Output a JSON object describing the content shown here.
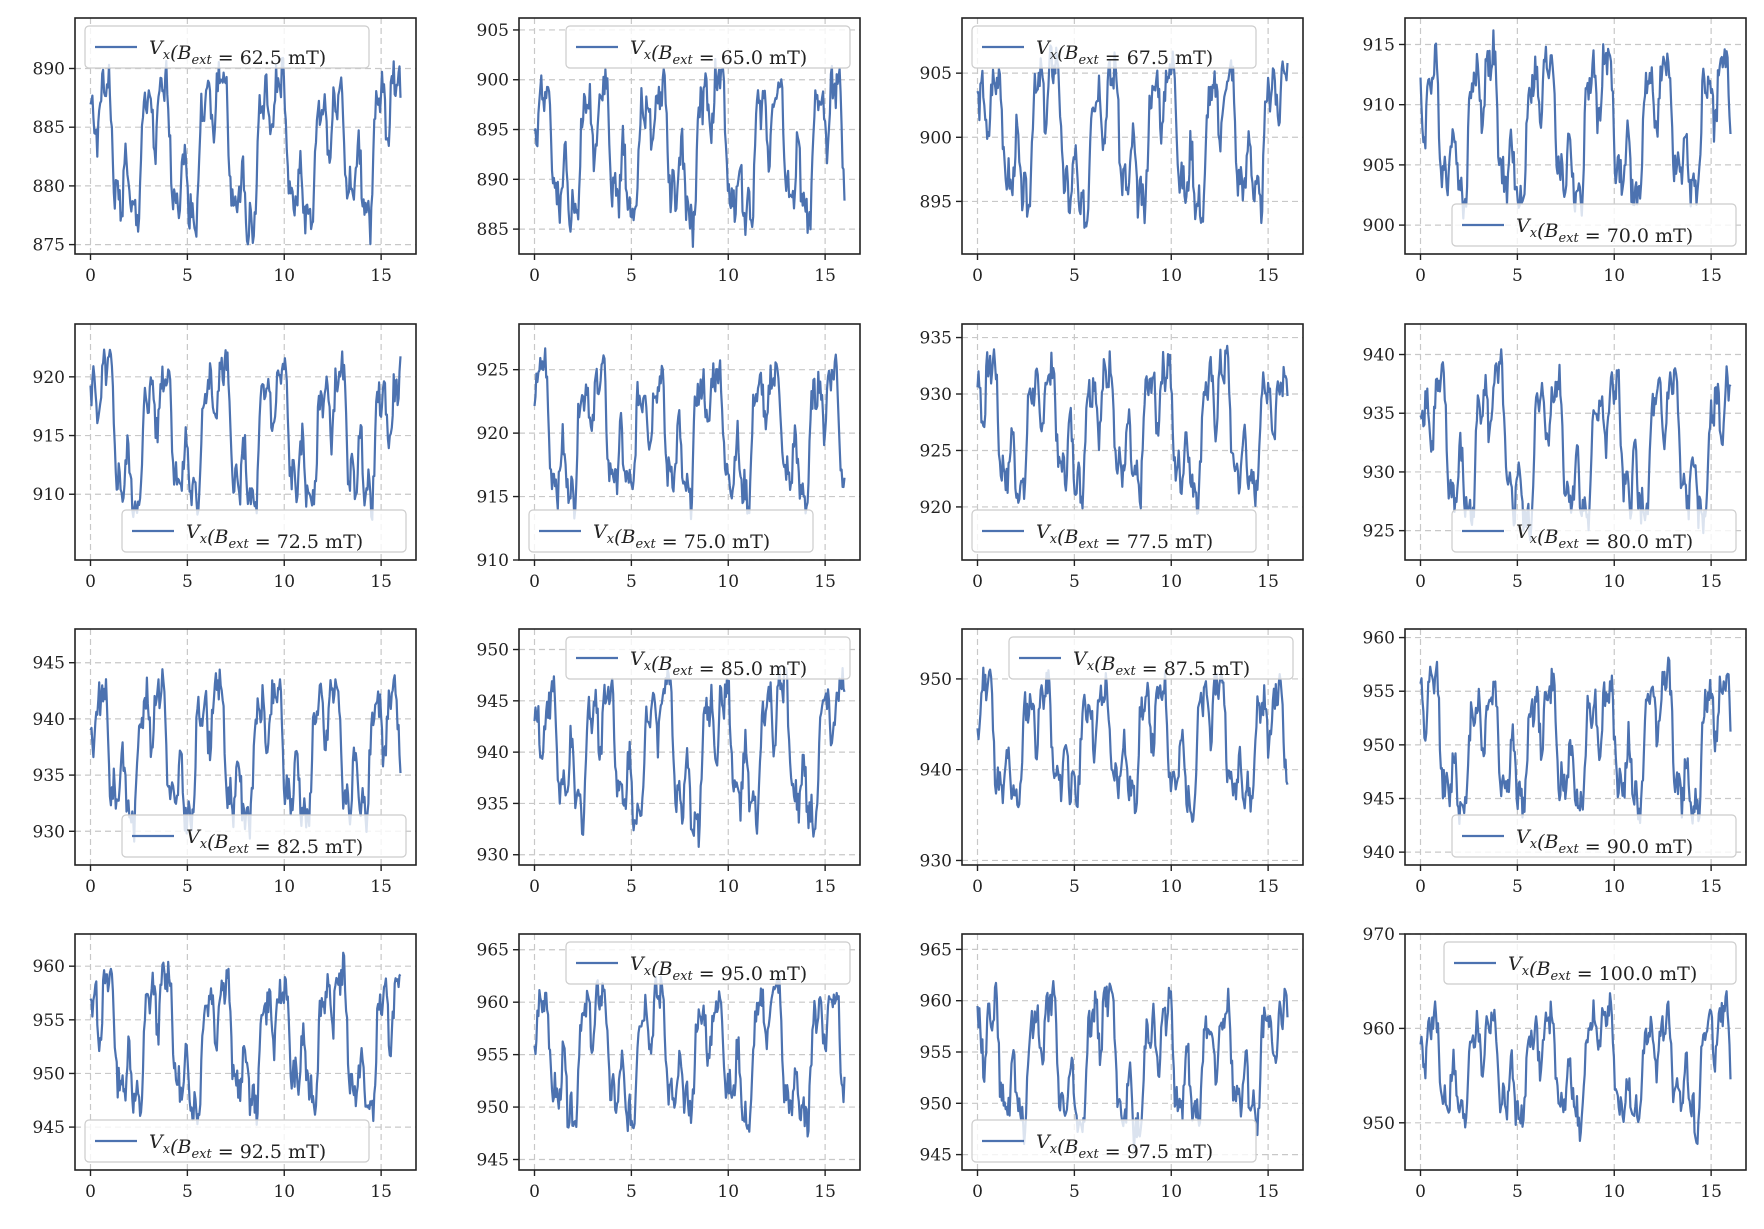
{
  "figure": {
    "line_color": "#4c72b0",
    "grid_color": "#c8c8c8",
    "frame_color": "#222222",
    "legend_prefix": "V",
    "legend_prefix_sub": "x",
    "legend_field": "(B",
    "legend_field_sub": "ext",
    "legend_unit": "mT)"
  },
  "chart_data": [
    {
      "type": "line",
      "legend": "62.5",
      "legend_loc": "top",
      "x_range": [
        0,
        16
      ],
      "xlim": [
        -0.8,
        16.8
      ],
      "xticks": [
        0,
        5,
        10,
        15
      ],
      "ylim": [
        874.2,
        894.3
      ],
      "yticks": [
        875,
        880,
        885,
        890
      ],
      "baseline": 883,
      "amplitude": 8.5,
      "period": 3.0,
      "phase": 0.6,
      "seed": 1
    },
    {
      "type": "line",
      "legend": "65.0",
      "legend_loc": "top-right",
      "x_range": [
        0,
        16
      ],
      "xlim": [
        -0.8,
        16.8
      ],
      "xticks": [
        0,
        5,
        10,
        15
      ],
      "ylim": [
        882.5,
        906.2
      ],
      "yticks": [
        885,
        890,
        895,
        900,
        905
      ],
      "baseline": 893,
      "amplitude": 10.5,
      "period": 3.0,
      "phase": 1.1,
      "seed": 2
    },
    {
      "type": "line",
      "legend": "67.5",
      "legend_loc": "top",
      "x_range": [
        0,
        16
      ],
      "xlim": [
        -0.8,
        16.8
      ],
      "xticks": [
        0,
        5,
        10,
        15
      ],
      "ylim": [
        890.9,
        909.3
      ],
      "yticks": [
        895,
        900,
        905
      ],
      "baseline": 900,
      "amplitude": 8.0,
      "period": 3.0,
      "phase": 0.2,
      "seed": 3
    },
    {
      "type": "line",
      "legend": "70.0",
      "legend_loc": "bottom-right",
      "x_range": [
        0,
        16
      ],
      "xlim": [
        -0.8,
        16.8
      ],
      "xticks": [
        0,
        5,
        10,
        15
      ],
      "ylim": [
        897.6,
        917.2
      ],
      "yticks": [
        900,
        905,
        910,
        915
      ],
      "baseline": 908,
      "amplitude": 8.5,
      "period": 3.0,
      "phase": 0.9,
      "seed": 4
    },
    {
      "type": "line",
      "legend": "72.5",
      "legend_loc": "bottom-right",
      "x_range": [
        0,
        16
      ],
      "xlim": [
        -0.8,
        16.8
      ],
      "xticks": [
        0,
        5,
        10,
        15
      ],
      "ylim": [
        904.4,
        924.5
      ],
      "yticks": [
        910,
        915,
        920
      ],
      "baseline": 915,
      "amplitude": 8.0,
      "period": 3.0,
      "phase": 0.4,
      "seed": 5
    },
    {
      "type": "line",
      "legend": "75.0",
      "legend_loc": "bottom",
      "x_range": [
        0,
        16
      ],
      "xlim": [
        -0.8,
        16.8
      ],
      "xticks": [
        0,
        5,
        10,
        15
      ],
      "ylim": [
        910.0,
        928.6
      ],
      "yticks": [
        910,
        915,
        920,
        925
      ],
      "baseline": 920,
      "amplitude": 7.5,
      "period": 3.0,
      "phase": 1.4,
      "seed": 6
    },
    {
      "type": "line",
      "legend": "77.5",
      "legend_loc": "bottom",
      "x_range": [
        0,
        16
      ],
      "xlim": [
        -0.8,
        16.8
      ],
      "xticks": [
        0,
        5,
        10,
        15
      ],
      "ylim": [
        915.3,
        936.2
      ],
      "yticks": [
        920,
        925,
        930,
        935
      ],
      "baseline": 927,
      "amplitude": 8.5,
      "period": 3.0,
      "phase": 0.7,
      "seed": 7
    },
    {
      "type": "line",
      "legend": "80.0",
      "legend_loc": "bottom-right",
      "x_range": [
        0,
        16
      ],
      "xlim": [
        -0.8,
        16.8
      ],
      "xticks": [
        0,
        5,
        10,
        15
      ],
      "ylim": [
        922.5,
        942.6
      ],
      "yticks": [
        925,
        930,
        935,
        940
      ],
      "baseline": 932,
      "amplitude": 8.5,
      "period": 3.0,
      "phase": 0.1,
      "seed": 8
    },
    {
      "type": "line",
      "legend": "82.5",
      "legend_loc": "bottom-right",
      "x_range": [
        0,
        16
      ],
      "xlim": [
        -0.8,
        16.8
      ],
      "xticks": [
        0,
        5,
        10,
        15
      ],
      "ylim": [
        927.0,
        948.0
      ],
      "yticks": [
        930,
        935,
        940,
        945
      ],
      "baseline": 937,
      "amplitude": 8.5,
      "period": 3.0,
      "phase": 1.0,
      "seed": 9
    },
    {
      "type": "line",
      "legend": "85.0",
      "legend_loc": "top-right",
      "x_range": [
        0,
        16
      ],
      "xlim": [
        -0.8,
        16.8
      ],
      "xticks": [
        0,
        5,
        10,
        15
      ],
      "ylim": [
        929.0,
        952.0
      ],
      "yticks": [
        930,
        935,
        940,
        945,
        950
      ],
      "baseline": 940,
      "amplitude": 9.5,
      "period": 3.0,
      "phase": 0.5,
      "seed": 10
    },
    {
      "type": "line",
      "legend": "87.5",
      "legend_loc": "top-right",
      "x_range": [
        0,
        16
      ],
      "xlim": [
        -0.8,
        16.8
      ],
      "xticks": [
        0,
        5,
        10,
        15
      ],
      "ylim": [
        929.5,
        955.5
      ],
      "yticks": [
        930,
        940,
        950
      ],
      "baseline": 943,
      "amplitude": 9.5,
      "period": 3.0,
      "phase": 1.2,
      "seed": 11
    },
    {
      "type": "line",
      "legend": "90.0",
      "legend_loc": "bottom-right",
      "x_range": [
        0,
        16
      ],
      "xlim": [
        -0.8,
        16.8
      ],
      "xticks": [
        0,
        5,
        10,
        15
      ],
      "ylim": [
        938.8,
        960.8
      ],
      "yticks": [
        940,
        945,
        950,
        955,
        960
      ],
      "baseline": 950,
      "amplitude": 8.5,
      "period": 3.0,
      "phase": 0.8,
      "seed": 12
    },
    {
      "type": "line",
      "legend": "92.5",
      "legend_loc": "bottom-left",
      "x_range": [
        0,
        16
      ],
      "xlim": [
        -0.8,
        16.8
      ],
      "xticks": [
        0,
        5,
        10,
        15
      ],
      "ylim": [
        941.0,
        963.0
      ],
      "yticks": [
        945,
        950,
        955,
        960
      ],
      "baseline": 953,
      "amplitude": 8.5,
      "period": 3.0,
      "phase": 0.3,
      "seed": 13
    },
    {
      "type": "line",
      "legend": "95.0",
      "legend_loc": "top-right",
      "x_range": [
        0,
        16
      ],
      "xlim": [
        -0.8,
        16.8
      ],
      "xticks": [
        0,
        5,
        10,
        15
      ],
      "ylim": [
        944.0,
        966.5
      ],
      "yticks": [
        945,
        950,
        955,
        960,
        965
      ],
      "baseline": 955,
      "amplitude": 8.5,
      "period": 3.0,
      "phase": 1.3,
      "seed": 14
    },
    {
      "type": "line",
      "legend": "97.5",
      "legend_loc": "bottom",
      "x_range": [
        0,
        16
      ],
      "xlim": [
        -0.8,
        16.8
      ],
      "xticks": [
        0,
        5,
        10,
        15
      ],
      "ylim": [
        943.5,
        966.5
      ],
      "yticks": [
        945,
        950,
        955,
        960,
        965
      ],
      "baseline": 954,
      "amplitude": 9.0,
      "period": 3.0,
      "phase": 0.6,
      "seed": 15
    },
    {
      "type": "line",
      "legend": "100.0",
      "legend_loc": "top-right",
      "x_range": [
        0,
        16
      ],
      "xlim": [
        -0.8,
        16.8
      ],
      "xticks": [
        0,
        5,
        10,
        15
      ],
      "ylim": [
        945.0,
        970.0
      ],
      "yticks": [
        950,
        960,
        970
      ],
      "baseline": 956,
      "amplitude": 8.5,
      "period": 3.0,
      "phase": 0.9,
      "seed": 16
    }
  ]
}
